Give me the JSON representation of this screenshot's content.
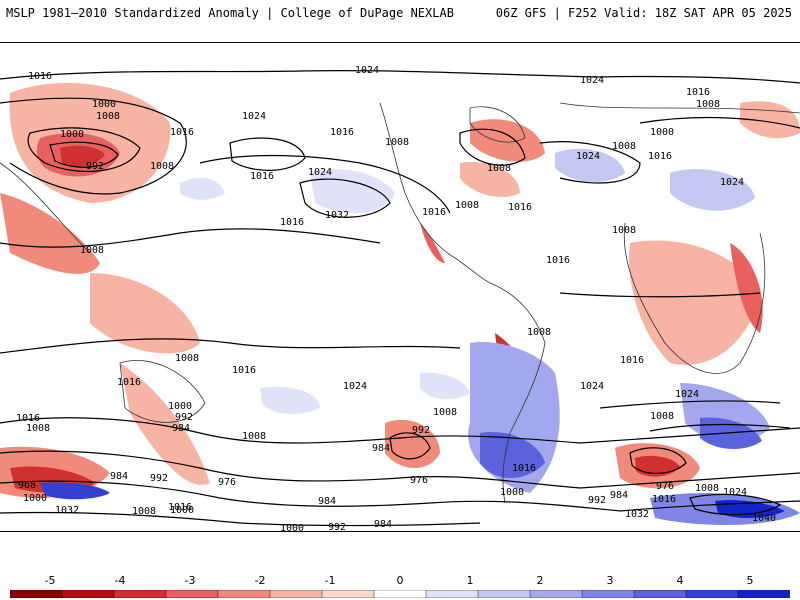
{
  "header": {
    "title_left": "MSLP 1981–2010 Standardized Anomaly | College of DuPage NEXLAB",
    "title_right": "06Z GFS | F252 Valid: 18Z SAT APR 05 2025"
  },
  "colorbar": {
    "ticks": [
      "-5",
      "-4",
      "-3",
      "-2",
      "-1",
      "0",
      "1",
      "2",
      "3",
      "4",
      "5"
    ],
    "neg_colors": [
      "#8b0000",
      "#b01010",
      "#d03030",
      "#e86060",
      "#f08a7a",
      "#f7b3a3",
      "#fbd5cc"
    ],
    "pos_colors": [
      "#dfe2f8",
      "#c4c8f3",
      "#a3a8ee",
      "#7f86e6",
      "#5a62dc",
      "#3440d2",
      "#1224c6"
    ]
  },
  "contour_labels": {
    "top_row": [
      "1016",
      "1024",
      "1024"
    ],
    "upper_left": [
      "1000",
      "1008",
      "1000",
      "992",
      "1008",
      "1016"
    ],
    "north_pacific": [
      "1024",
      "1016",
      "1024",
      "1032",
      "1008",
      "1016"
    ],
    "north_america": [
      "1008",
      "1016",
      "1008",
      "1016"
    ],
    "europe_asia": [
      "1024",
      "1016",
      "1008",
      "1016",
      "1000",
      "1008",
      "1008",
      "1024"
    ],
    "tropics": [
      "1016",
      "1008",
      "1008",
      "1008",
      "1016"
    ],
    "south_mid": [
      "1016",
      "1024",
      "1016",
      "1008",
      "1016",
      "1008",
      "1024",
      "1016",
      "1008",
      "1024"
    ],
    "southern_ocean": [
      "1000",
      "992",
      "984",
      "1000",
      "984",
      "976",
      "992",
      "984",
      "976",
      "1008",
      "984",
      "992",
      "1000",
      "968",
      "1016",
      "1032",
      "1008",
      "1000",
      "1016",
      "1000",
      "992",
      "984",
      "976",
      "992",
      "984",
      "1008",
      "1016",
      "1024",
      "1040",
      "1032"
    ]
  },
  "legend_meaning": "Standardized anomaly: red negative, blue positive"
}
